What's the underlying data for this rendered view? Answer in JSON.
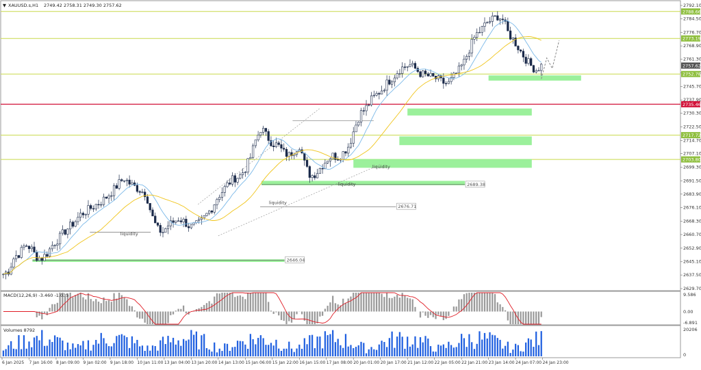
{
  "chart_data": [
    {
      "type": "candlestick",
      "pane": "price",
      "header": {
        "symbol_label": "XAUUSD.s,H1",
        "ohlc_label": "2749.42 2758.31 2749.30 2757.62"
      },
      "y_range": [
        2629.7,
        2792.1
      ],
      "y_ticks": [
        "2792.10",
        "2784.50",
        "2776.70",
        "2768.90",
        "2761.30",
        "2753.50",
        "2745.70",
        "2737.90",
        "2730.30",
        "2722.50",
        "2714.70",
        "2707.10",
        "2699.30",
        "2691.50",
        "2683.90",
        "2676.10",
        "2668.30",
        "2660.70",
        "2652.90",
        "2645.10",
        "2637.50",
        "2629.70"
      ],
      "x_labels": [
        "6 Jan 2025",
        "7 Jan 16:00",
        "8 Jan 09:00",
        "9 Jan 02:00",
        "9 Jan 18:00",
        "10 Jan 11:00",
        "13 Jan 04:00",
        "13 Jan 20:00",
        "14 Jan 13:00",
        "15 Jan 06:00",
        "15 Jan 22:00",
        "16 Jan 15:00",
        "17 Jan 08:00",
        "20 Jan 01:00",
        "20 Jan 17:00",
        "21 Jan 12:00",
        "22 Jan 05:00",
        "22 Jan 21:00",
        "23 Jan 14:00",
        "24 Jan 07:00",
        "24 Jan 23:00"
      ],
      "close_path": [
        2638,
        2640,
        2648,
        2650,
        2655,
        2653,
        2648,
        2647,
        2650,
        2655,
        2658,
        2662,
        2665,
        2668,
        2672,
        2674,
        2676,
        2678,
        2680,
        2683,
        2686,
        2690,
        2693,
        2690,
        2688,
        2686,
        2684,
        2672,
        2664,
        2662,
        2666,
        2668,
        2670,
        2668,
        2665,
        2666,
        2668,
        2672,
        2676,
        2682,
        2686,
        2690,
        2693,
        2694,
        2698,
        2705,
        2715,
        2722,
        2717,
        2713,
        2712,
        2708,
        2706,
        2709,
        2712,
        2700,
        2694,
        2696,
        2700,
        2704,
        2706,
        2705,
        2708,
        2712,
        2722,
        2730,
        2733,
        2738,
        2741,
        2744,
        2748,
        2751,
        2755,
        2757,
        2758,
        2756,
        2753,
        2752,
        2751,
        2750,
        2748,
        2747,
        2751,
        2755,
        2760,
        2768,
        2775,
        2778,
        2782,
        2784,
        2786,
        2784,
        2776,
        2772,
        2767,
        2762,
        2758,
        2755,
        2757.62
      ],
      "moving_averages": [
        {
          "name": "fast",
          "color": "#7ab8e8"
        },
        {
          "name": "slow",
          "color": "#f0c419"
        }
      ],
      "price_tags": [
        {
          "value": "2788.66",
          "color": "#8fbf3f"
        },
        {
          "value": "2773.19",
          "color": "#8fbf3f"
        },
        {
          "value": "2757.62",
          "color": "#555555"
        },
        {
          "value": "2752.78",
          "color": "#8fbf3f"
        },
        {
          "value": "2735.46",
          "color": "#d2143a"
        },
        {
          "value": "2717.72",
          "color": "#8fbf3f"
        },
        {
          "value": "2703.80",
          "color": "#8fbf3f"
        }
      ],
      "horizontal_lines": [
        {
          "value": 2788.66,
          "color": "#c8d94a"
        },
        {
          "value": 2773.19,
          "color": "#c8d94a"
        },
        {
          "value": 2752.78,
          "color": "#c8d94a"
        },
        {
          "value": 2735.46,
          "color": "#d2143a"
        },
        {
          "value": 2717.72,
          "color": "#c8d94a"
        },
        {
          "value": 2703.8,
          "color": "#c8d94a"
        }
      ],
      "zones": [
        {
          "price_top": 2752.0,
          "price_bottom": 2749.0,
          "x_start": 0.72,
          "x_end": 0.857,
          "color": "#90ee90"
        },
        {
          "price_top": 2733.0,
          "price_bottom": 2729.0,
          "x_start": 0.6,
          "x_end": 0.784,
          "color": "#90ee90"
        },
        {
          "price_top": 2717.0,
          "price_bottom": 2712.0,
          "x_start": 0.588,
          "x_end": 0.784,
          "color": "#90ee90"
        },
        {
          "price_top": 2704.0,
          "price_bottom": 2699.0,
          "x_start": 0.52,
          "x_end": 0.784,
          "color": "#90ee90"
        },
        {
          "price_top": 2691.5,
          "price_bottom": 2689.0,
          "x_start": 0.384,
          "x_end": 0.685,
          "color": "#90ee90"
        },
        {
          "price_top": 2646.5,
          "price_bottom": 2645.0,
          "x_start": 0.045,
          "x_end": 0.418,
          "color": "#90ee90"
        }
      ],
      "level_boxes": [
        {
          "value": "2689.38"
        },
        {
          "value": "2676.71"
        },
        {
          "value": "2646.04"
        }
      ],
      "annotations": [
        "liquidity",
        "liquidity",
        "liquidity",
        "liquidity"
      ]
    },
    {
      "type": "histogram",
      "pane": "macd",
      "label": "MACD(12,26,9) -3.460 -1.035",
      "y_ticks": [
        "9.586",
        "0.00",
        "-6.891"
      ],
      "signal_color": "#e01b24"
    },
    {
      "type": "bar",
      "pane": "volume",
      "label": "Volumes 8792",
      "y_ticks": [
        "20206",
        "0"
      ],
      "color": "#2060e0"
    }
  ]
}
